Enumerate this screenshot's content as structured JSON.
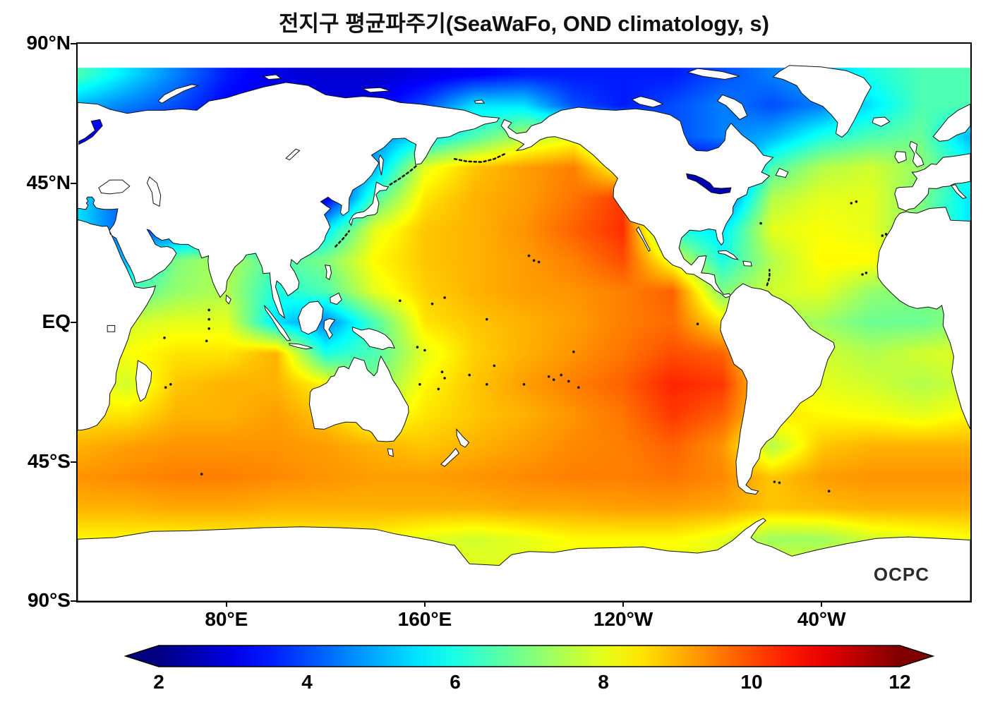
{
  "title": "전지구 평균파주기(SeaWaFo, OND climatology, s)",
  "watermark": "OCPC",
  "axes": {
    "y_ticks": [
      {
        "label": "90°N",
        "lat": 90
      },
      {
        "label": "45°N",
        "lat": 45
      },
      {
        "label": "EQ",
        "lat": 0
      },
      {
        "label": "45°S",
        "lat": -45
      },
      {
        "label": "90°S",
        "lat": -90
      }
    ],
    "x_ticks": [
      {
        "label": "80°E",
        "lon": 80
      },
      {
        "label": "160°E",
        "lon": 160
      },
      {
        "label": "120°W",
        "lon": 240
      },
      {
        "label": "40°W",
        "lon": 320
      }
    ]
  },
  "colorbar": {
    "min": 2,
    "max": 12,
    "ticks": [
      2,
      4,
      6,
      8,
      10,
      12
    ],
    "colormap": "jet",
    "end_colors": {
      "low": "#00007f",
      "high": "#7f0000"
    }
  },
  "chart_data": {
    "type": "heatmap",
    "title": "전지구 평균파주기(SeaWaFo, OND climatology, s)",
    "variable": "mean wave period",
    "units": "s",
    "source_label": "SeaWaFo",
    "season_label": "OND climatology",
    "projection": "equirectangular, Pacific-centered",
    "lon_range": [
      20,
      380
    ],
    "lat_range": [
      -90,
      90
    ],
    "data_top_lat": 82.3,
    "value_range": [
      2,
      12
    ],
    "grid_lons": [
      20,
      40,
      60,
      80,
      100,
      120,
      140,
      160,
      180,
      200,
      220,
      240,
      260,
      280,
      300,
      320,
      340,
      360,
      380
    ],
    "grid_lats": [
      90,
      80,
      70,
      60,
      50,
      40,
      30,
      20,
      10,
      0,
      -10,
      -20,
      -30,
      -40,
      -50,
      -60,
      -70,
      -80,
      -90
    ],
    "values": [
      [
        6.5,
        5.5,
        4.5,
        3.5,
        3.0,
        2.8,
        2.8,
        3.0,
        3.2,
        3.5,
        3.5,
        3.5,
        3.5,
        4.0,
        4.5,
        5.0,
        6.0,
        6.5,
        6.5
      ],
      [
        6.5,
        5.5,
        4.5,
        3.5,
        3.0,
        2.8,
        2.8,
        3.0,
        3.2,
        3.5,
        3.5,
        3.5,
        3.5,
        4.0,
        4.5,
        5.0,
        6.0,
        6.5,
        6.5
      ],
      [
        5.0,
        4.5,
        4.0,
        3.2,
        3.0,
        3.0,
        3.0,
        4.0,
        5.5,
        5.5,
        4.0,
        3.5,
        4.0,
        4.5,
        4.0,
        4.5,
        5.5,
        6.5,
        6.5
      ],
      [
        3.5,
        3.5,
        3.5,
        3.2,
        3.0,
        3.0,
        4.5,
        5.5,
        6.5,
        7.5,
        8.0,
        6.0,
        4.0,
        4.5,
        5.0,
        6.0,
        6.5,
        6.8,
        5.0
      ],
      [
        3.0,
        3.0,
        3.0,
        3.0,
        3.0,
        3.0,
        5.0,
        8.0,
        8.8,
        9.2,
        9.5,
        8.0,
        3.0,
        3.0,
        6.5,
        7.5,
        7.8,
        7.2,
        6.0
      ],
      [
        5.5,
        4.0,
        3.0,
        3.0,
        3.0,
        3.0,
        6.5,
        8.5,
        9.0,
        9.2,
        9.6,
        10.2,
        4.0,
        4.0,
        7.5,
        8.0,
        8.0,
        7.0,
        5.5
      ],
      [
        5.5,
        4.0,
        4.0,
        5.0,
        4.0,
        5.5,
        8.0,
        8.8,
        9.0,
        9.3,
        9.8,
        10.3,
        6.0,
        5.5,
        8.0,
        8.2,
        8.0,
        7.0,
        5.5
      ],
      [
        6.0,
        5.0,
        7.0,
        7.5,
        6.5,
        7.0,
        8.3,
        8.8,
        9.0,
        9.2,
        9.5,
        10.0,
        8.0,
        6.0,
        7.5,
        8.3,
        8.3,
        7.5,
        6.5
      ],
      [
        7.0,
        6.5,
        7.2,
        7.5,
        6.0,
        6.5,
        8.0,
        8.7,
        9.0,
        9.2,
        9.3,
        9.5,
        9.8,
        7.0,
        7.8,
        8.0,
        7.2,
        7.0,
        7.0
      ],
      [
        7.5,
        7.8,
        8.0,
        8.0,
        5.5,
        4.5,
        6.5,
        8.5,
        8.8,
        9.0,
        9.2,
        9.5,
        9.7,
        8.5,
        7.5,
        7.3,
        6.8,
        6.8,
        7.2
      ],
      [
        8.0,
        8.2,
        8.5,
        8.5,
        9.0,
        6.0,
        6.5,
        8.0,
        8.7,
        9.0,
        9.3,
        9.6,
        10.0,
        9.8,
        8.0,
        7.8,
        7.5,
        7.8,
        8.0
      ],
      [
        8.3,
        7.8,
        8.8,
        9.0,
        9.0,
        8.3,
        7.0,
        8.3,
        8.8,
        9.2,
        9.5,
        9.8,
        10.4,
        10.2,
        8.3,
        8.0,
        7.8,
        7.5,
        7.8
      ],
      [
        8.5,
        8.5,
        9.0,
        9.0,
        9.2,
        8.8,
        8.0,
        8.5,
        8.8,
        9.0,
        9.3,
        9.6,
        10.2,
        9.8,
        8.5,
        8.3,
        8.2,
        8.0,
        8.3
      ],
      [
        9.0,
        9.2,
        9.3,
        9.3,
        9.3,
        9.2,
        9.0,
        8.8,
        9.0,
        9.2,
        9.4,
        9.5,
        9.8,
        9.3,
        7.5,
        8.8,
        9.0,
        9.0,
        9.0
      ],
      [
        9.3,
        9.4,
        9.5,
        9.5,
        9.4,
        9.3,
        9.2,
        9.2,
        9.3,
        9.4,
        9.5,
        9.5,
        9.6,
        9.4,
        8.8,
        9.2,
        9.3,
        9.3,
        9.3
      ],
      [
        9.0,
        9.0,
        9.1,
        9.1,
        9.0,
        9.0,
        9.0,
        9.0,
        9.0,
        9.1,
        9.1,
        9.2,
        9.2,
        9.1,
        8.8,
        8.9,
        9.0,
        9.0,
        9.0
      ],
      [
        8.3,
        8.3,
        8.3,
        8.3,
        8.3,
        8.3,
        8.3,
        8.0,
        7.8,
        8.0,
        8.3,
        8.3,
        8.3,
        8.0,
        7.3,
        7.3,
        7.8,
        8.0,
        8.2
      ],
      [
        8.0,
        8.0,
        8.0,
        8.0,
        8.0,
        8.0,
        8.0,
        8.0,
        8.0,
        8.0,
        8.0,
        8.0,
        8.0,
        8.0,
        8.0,
        8.0,
        8.0,
        8.0,
        8.0
      ],
      [
        8.0,
        8.0,
        8.0,
        8.0,
        8.0,
        8.0,
        8.0,
        8.0,
        8.0,
        8.0,
        8.0,
        8.0,
        8.0,
        8.0,
        8.0,
        8.0,
        8.0,
        8.0,
        8.0
      ]
    ],
    "lake_values": {
      "great_lakes": 2.5,
      "baltic": 3.2
    }
  }
}
